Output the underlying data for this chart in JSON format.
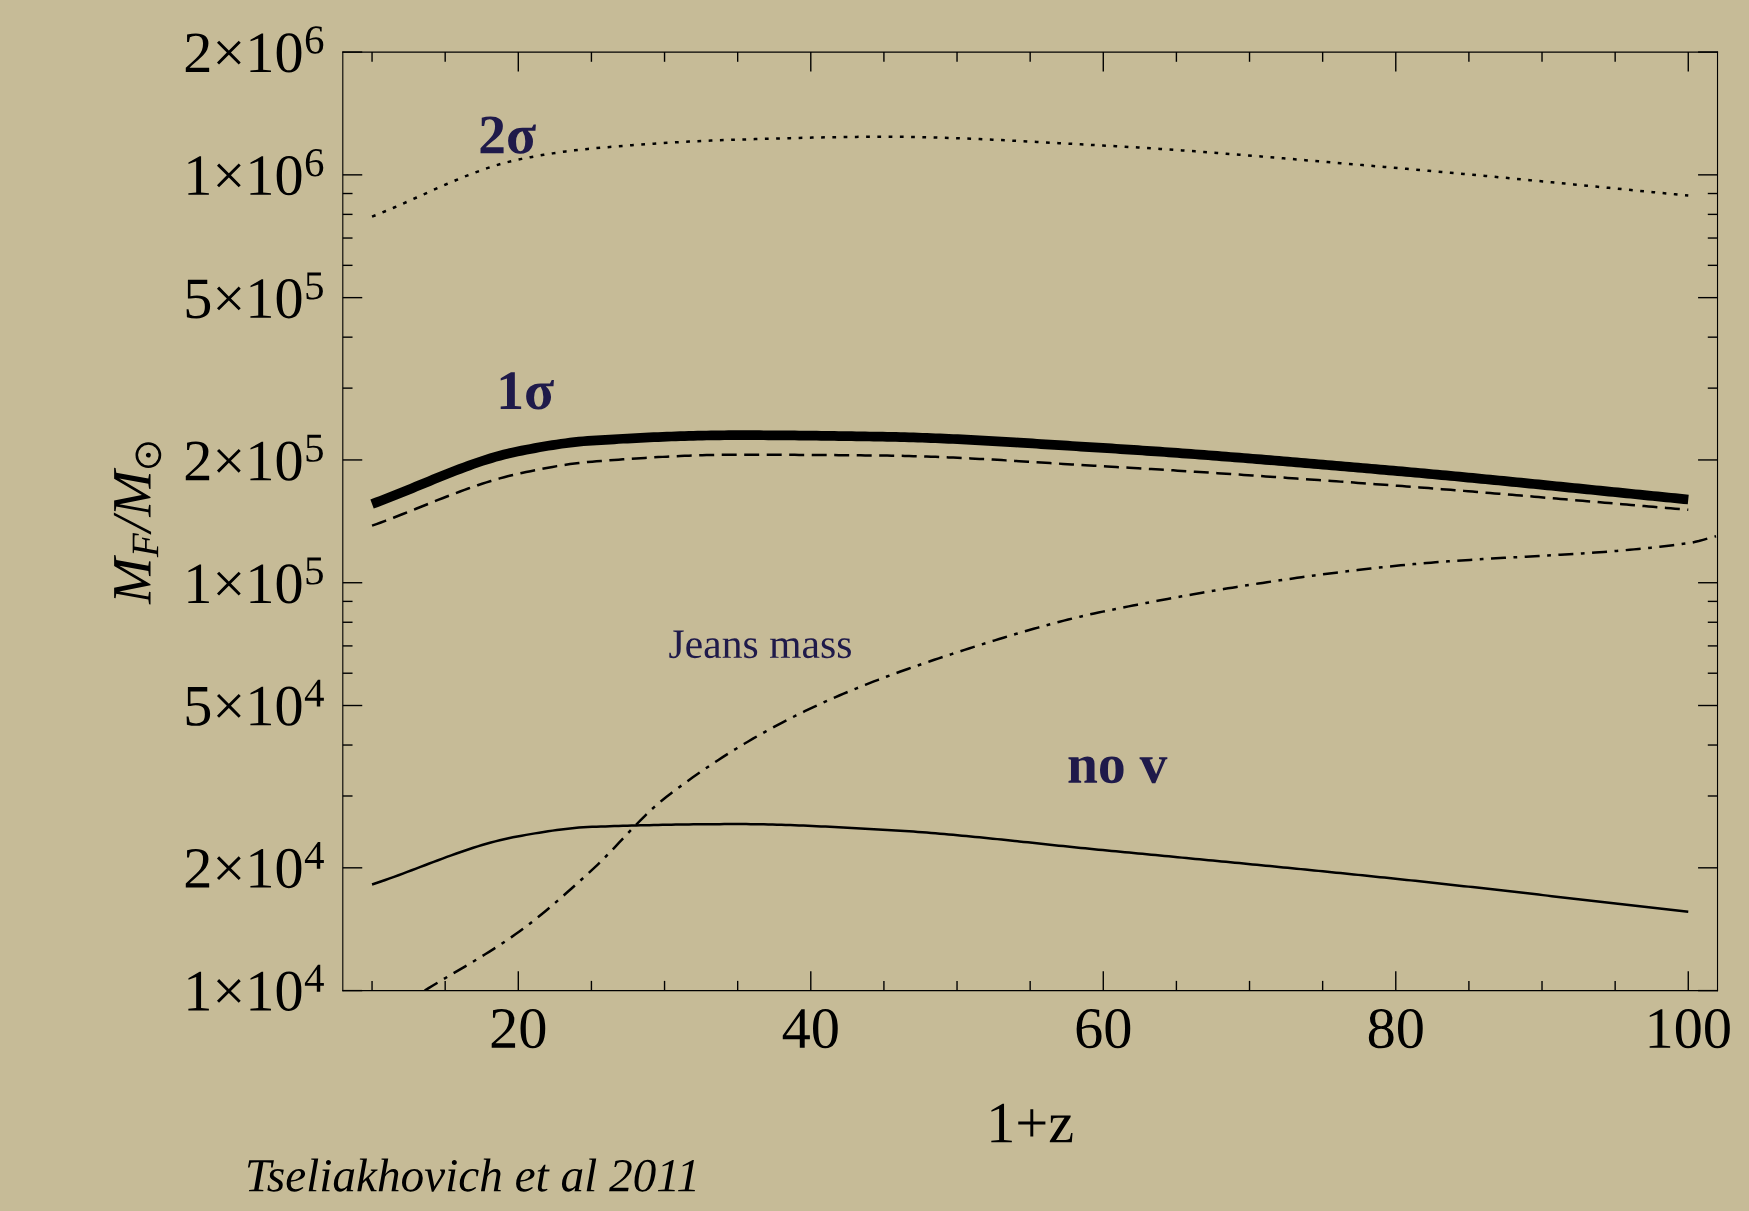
{
  "chart_data": {
    "type": "line",
    "xlabel": "1+z",
    "ylabel": "M$_{F}$/M$_{⊙}$",
    "log": "y",
    "xlim": [
      8,
      102
    ],
    "ylim": [
      10000,
      2000000
    ],
    "xticks": [
      20,
      40,
      60,
      80,
      100
    ],
    "yticks": [
      {
        "value": 10000,
        "label": "1×10$^{4}$"
      },
      {
        "value": 20000,
        "label": "2×10$^{4}$"
      },
      {
        "value": 50000,
        "label": "5×10$^{4}$"
      },
      {
        "value": 100000,
        "label": "1×10$^{5}$"
      },
      {
        "value": 200000,
        "label": "2×10$^{5}$"
      },
      {
        "value": 500000,
        "label": "5×10$^{5}$"
      },
      {
        "value": 1000000,
        "label": "1×10$^{6}$"
      },
      {
        "value": 2000000,
        "label": "2×10$^{6}$"
      }
    ],
    "grid": false,
    "marker": "none",
    "x": [
      10,
      20,
      25,
      35,
      45,
      60,
      80,
      100
    ],
    "series": [
      {
        "color": "#000000",
        "line_style": "dotted",
        "values": [
          790000,
          1090000,
          1160000,
          1220000,
          1240000,
          1180000,
          1040000,
          890000
        ]
      },
      {
        "name": "1σ",
        "color": "#000000",
        "line_style": "solid",
        "values": [
          156000,
          210000,
          223000,
          230000,
          228000,
          214000,
          188000,
          160000
        ]
      },
      {
        "color": "#000000",
        "line_style": "dashed",
        "values": [
          138000,
          185000,
          198000,
          206000,
          205000,
          193000,
          173000,
          151000
        ]
      },
      {
        "name": "Jeans mass",
        "color": "#000000",
        "line_style": "dashdot",
        "x": [
          13.6,
          20,
          25,
          30,
          40,
          50,
          60,
          80,
          100,
          101.9
        ],
        "values": [
          10000,
          13900,
          19700,
          29600,
          49200,
          67500,
          85000,
          110000,
          125000,
          130000
        ]
      },
      {
        "name": "no v",
        "color": "#000000",
        "line_style": "solid",
        "values": [
          18200,
          23900,
          25200,
          25600,
          24800,
          22100,
          18800,
          15600
        ]
      }
    ],
    "annotations": [
      {
        "text": "2σ",
        "x": 20,
        "y": 1090000
      },
      "Tseliakhovich et al 2011"
    ]
  }
}
